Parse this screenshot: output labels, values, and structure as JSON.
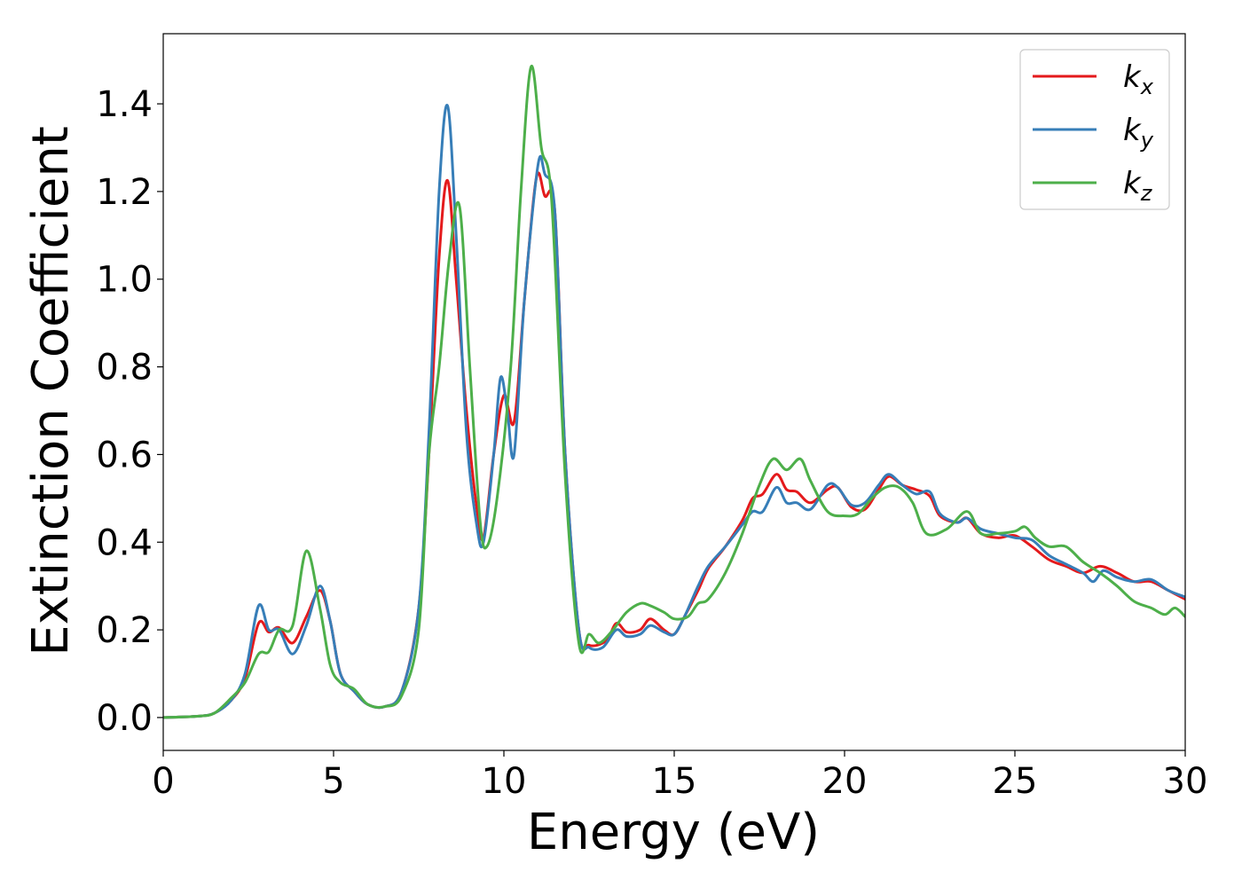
{
  "chart_data": {
    "type": "line",
    "title": "",
    "xlabel": "Energy (eV)",
    "ylabel": "Extinction Coefficient",
    "xlim": [
      0,
      30
    ],
    "ylim": [
      -0.075,
      1.56
    ],
    "xticks": [
      0,
      5,
      10,
      15,
      20,
      25,
      30
    ],
    "yticks": [
      0.0,
      0.2,
      0.4,
      0.6,
      0.8,
      1.0,
      1.2,
      1.4
    ],
    "xtick_labels": [
      "0",
      "5",
      "10",
      "15",
      "20",
      "25",
      "30"
    ],
    "ytick_labels": [
      "0.0",
      "0.2",
      "0.4",
      "0.6",
      "0.8",
      "1.0",
      "1.2",
      "1.4"
    ],
    "grid": false,
    "legend_position": "top-right",
    "series": [
      {
        "name": "k",
        "subscript": "x",
        "color": "#e41a1c",
        "points": [
          [
            0,
            0
          ],
          [
            1,
            0.003
          ],
          [
            1.5,
            0.01
          ],
          [
            2,
            0.04
          ],
          [
            2.4,
            0.09
          ],
          [
            2.8,
            0.215
          ],
          [
            3.1,
            0.195
          ],
          [
            3.4,
            0.205
          ],
          [
            3.8,
            0.17
          ],
          [
            4.2,
            0.23
          ],
          [
            4.6,
            0.29
          ],
          [
            4.9,
            0.22
          ],
          [
            5.2,
            0.1
          ],
          [
            5.6,
            0.06
          ],
          [
            6,
            0.03
          ],
          [
            6.5,
            0.025
          ],
          [
            7,
            0.06
          ],
          [
            7.5,
            0.25
          ],
          [
            7.8,
            0.6
          ],
          [
            8.1,
            1.05
          ],
          [
            8.35,
            1.225
          ],
          [
            8.6,
            1.0
          ],
          [
            8.9,
            0.7
          ],
          [
            9.2,
            0.48
          ],
          [
            9.4,
            0.41
          ],
          [
            9.7,
            0.6
          ],
          [
            10,
            0.735
          ],
          [
            10.3,
            0.675
          ],
          [
            10.6,
            0.95
          ],
          [
            10.95,
            1.23
          ],
          [
            11.2,
            1.19
          ],
          [
            11.5,
            1.15
          ],
          [
            11.8,
            0.6
          ],
          [
            12.2,
            0.2
          ],
          [
            12.5,
            0.165
          ],
          [
            13,
            0.175
          ],
          [
            13.3,
            0.215
          ],
          [
            13.6,
            0.195
          ],
          [
            14,
            0.2
          ],
          [
            14.3,
            0.225
          ],
          [
            14.7,
            0.2
          ],
          [
            15,
            0.19
          ],
          [
            15.3,
            0.23
          ],
          [
            15.7,
            0.29
          ],
          [
            16,
            0.34
          ],
          [
            16.5,
            0.39
          ],
          [
            17,
            0.45
          ],
          [
            17.3,
            0.5
          ],
          [
            17.6,
            0.51
          ],
          [
            18,
            0.555
          ],
          [
            18.3,
            0.52
          ],
          [
            18.6,
            0.515
          ],
          [
            19,
            0.49
          ],
          [
            19.5,
            0.52
          ],
          [
            19.8,
            0.525
          ],
          [
            20.2,
            0.48
          ],
          [
            20.6,
            0.475
          ],
          [
            21,
            0.52
          ],
          [
            21.3,
            0.55
          ],
          [
            21.7,
            0.53
          ],
          [
            22.1,
            0.52
          ],
          [
            22.5,
            0.505
          ],
          [
            22.8,
            0.46
          ],
          [
            23.3,
            0.445
          ],
          [
            23.6,
            0.455
          ],
          [
            24,
            0.42
          ],
          [
            24.5,
            0.41
          ],
          [
            25,
            0.415
          ],
          [
            25.5,
            0.39
          ],
          [
            26,
            0.36
          ],
          [
            26.5,
            0.345
          ],
          [
            27,
            0.33
          ],
          [
            27.5,
            0.345
          ],
          [
            28,
            0.33
          ],
          [
            28.5,
            0.31
          ],
          [
            29,
            0.31
          ],
          [
            29.5,
            0.29
          ],
          [
            30,
            0.27
          ]
        ]
      },
      {
        "name": "k",
        "subscript": "y",
        "color": "#377eb8",
        "points": [
          [
            0,
            0
          ],
          [
            1,
            0.003
          ],
          [
            1.5,
            0.01
          ],
          [
            2,
            0.04
          ],
          [
            2.4,
            0.1
          ],
          [
            2.8,
            0.255
          ],
          [
            3.1,
            0.2
          ],
          [
            3.4,
            0.2
          ],
          [
            3.8,
            0.145
          ],
          [
            4.2,
            0.21
          ],
          [
            4.6,
            0.3
          ],
          [
            4.9,
            0.22
          ],
          [
            5.2,
            0.1
          ],
          [
            5.6,
            0.06
          ],
          [
            6,
            0.03
          ],
          [
            6.5,
            0.025
          ],
          [
            7,
            0.06
          ],
          [
            7.5,
            0.25
          ],
          [
            7.8,
            0.65
          ],
          [
            8.1,
            1.2
          ],
          [
            8.35,
            1.395
          ],
          [
            8.6,
            1.1
          ],
          [
            8.9,
            0.65
          ],
          [
            9.2,
            0.44
          ],
          [
            9.4,
            0.4
          ],
          [
            9.7,
            0.6
          ],
          [
            9.9,
            0.775
          ],
          [
            10.1,
            0.7
          ],
          [
            10.3,
            0.6
          ],
          [
            10.6,
            0.95
          ],
          [
            11,
            1.26
          ],
          [
            11.2,
            1.24
          ],
          [
            11.5,
            1.15
          ],
          [
            11.8,
            0.6
          ],
          [
            12.2,
            0.2
          ],
          [
            12.5,
            0.16
          ],
          [
            12.9,
            0.16
          ],
          [
            13.3,
            0.2
          ],
          [
            13.6,
            0.185
          ],
          [
            14,
            0.19
          ],
          [
            14.3,
            0.21
          ],
          [
            14.7,
            0.195
          ],
          [
            15,
            0.19
          ],
          [
            15.3,
            0.23
          ],
          [
            15.7,
            0.3
          ],
          [
            16,
            0.345
          ],
          [
            16.5,
            0.39
          ],
          [
            17,
            0.44
          ],
          [
            17.3,
            0.47
          ],
          [
            17.6,
            0.47
          ],
          [
            18,
            0.525
          ],
          [
            18.3,
            0.49
          ],
          [
            18.6,
            0.49
          ],
          [
            19,
            0.475
          ],
          [
            19.5,
            0.53
          ],
          [
            19.8,
            0.525
          ],
          [
            20.2,
            0.485
          ],
          [
            20.6,
            0.49
          ],
          [
            21,
            0.53
          ],
          [
            21.3,
            0.555
          ],
          [
            21.7,
            0.53
          ],
          [
            22.1,
            0.51
          ],
          [
            22.5,
            0.515
          ],
          [
            22.8,
            0.465
          ],
          [
            23.3,
            0.445
          ],
          [
            23.6,
            0.455
          ],
          [
            24,
            0.43
          ],
          [
            24.5,
            0.42
          ],
          [
            25,
            0.41
          ],
          [
            25.5,
            0.405
          ],
          [
            26,
            0.37
          ],
          [
            26.5,
            0.35
          ],
          [
            27,
            0.33
          ],
          [
            27.3,
            0.31
          ],
          [
            27.6,
            0.335
          ],
          [
            28,
            0.32
          ],
          [
            28.5,
            0.31
          ],
          [
            29,
            0.315
          ],
          [
            29.5,
            0.29
          ],
          [
            30,
            0.275
          ]
        ]
      },
      {
        "name": "k",
        "subscript": "z",
        "color": "#4daf4a",
        "points": [
          [
            0,
            0
          ],
          [
            1,
            0.003
          ],
          [
            1.5,
            0.01
          ],
          [
            2,
            0.045
          ],
          [
            2.4,
            0.08
          ],
          [
            2.8,
            0.145
          ],
          [
            3.1,
            0.15
          ],
          [
            3.4,
            0.2
          ],
          [
            3.8,
            0.21
          ],
          [
            4.2,
            0.38
          ],
          [
            4.6,
            0.25
          ],
          [
            4.9,
            0.12
          ],
          [
            5.2,
            0.08
          ],
          [
            5.6,
            0.065
          ],
          [
            6,
            0.03
          ],
          [
            6.5,
            0.025
          ],
          [
            7,
            0.05
          ],
          [
            7.5,
            0.2
          ],
          [
            7.8,
            0.6
          ],
          [
            8.1,
            0.8
          ],
          [
            8.4,
            1.05
          ],
          [
            8.7,
            1.165
          ],
          [
            9,
            0.8
          ],
          [
            9.3,
            0.45
          ],
          [
            9.5,
            0.39
          ],
          [
            9.8,
            0.5
          ],
          [
            10.2,
            0.8
          ],
          [
            10.5,
            1.2
          ],
          [
            10.8,
            1.485
          ],
          [
            11.1,
            1.3
          ],
          [
            11.4,
            1.18
          ],
          [
            11.8,
            0.55
          ],
          [
            12.2,
            0.17
          ],
          [
            12.5,
            0.19
          ],
          [
            12.8,
            0.17
          ],
          [
            13.2,
            0.2
          ],
          [
            13.6,
            0.24
          ],
          [
            14,
            0.26
          ],
          [
            14.3,
            0.255
          ],
          [
            14.7,
            0.24
          ],
          [
            15,
            0.225
          ],
          [
            15.4,
            0.23
          ],
          [
            15.7,
            0.26
          ],
          [
            16,
            0.27
          ],
          [
            16.5,
            0.33
          ],
          [
            17,
            0.42
          ],
          [
            17.5,
            0.53
          ],
          [
            17.9,
            0.59
          ],
          [
            18.3,
            0.565
          ],
          [
            18.7,
            0.59
          ],
          [
            19,
            0.54
          ],
          [
            19.5,
            0.47
          ],
          [
            20,
            0.46
          ],
          [
            20.4,
            0.465
          ],
          [
            20.8,
            0.5
          ],
          [
            21.2,
            0.525
          ],
          [
            21.6,
            0.525
          ],
          [
            22,
            0.49
          ],
          [
            22.4,
            0.42
          ],
          [
            23,
            0.43
          ],
          [
            23.6,
            0.47
          ],
          [
            24,
            0.42
          ],
          [
            24.5,
            0.42
          ],
          [
            25,
            0.425
          ],
          [
            25.3,
            0.435
          ],
          [
            25.6,
            0.41
          ],
          [
            26,
            0.39
          ],
          [
            26.5,
            0.39
          ],
          [
            27,
            0.355
          ],
          [
            27.5,
            0.33
          ],
          [
            28,
            0.3
          ],
          [
            28.5,
            0.265
          ],
          [
            29,
            0.25
          ],
          [
            29.4,
            0.235
          ],
          [
            29.7,
            0.25
          ],
          [
            30,
            0.23
          ]
        ]
      }
    ]
  }
}
